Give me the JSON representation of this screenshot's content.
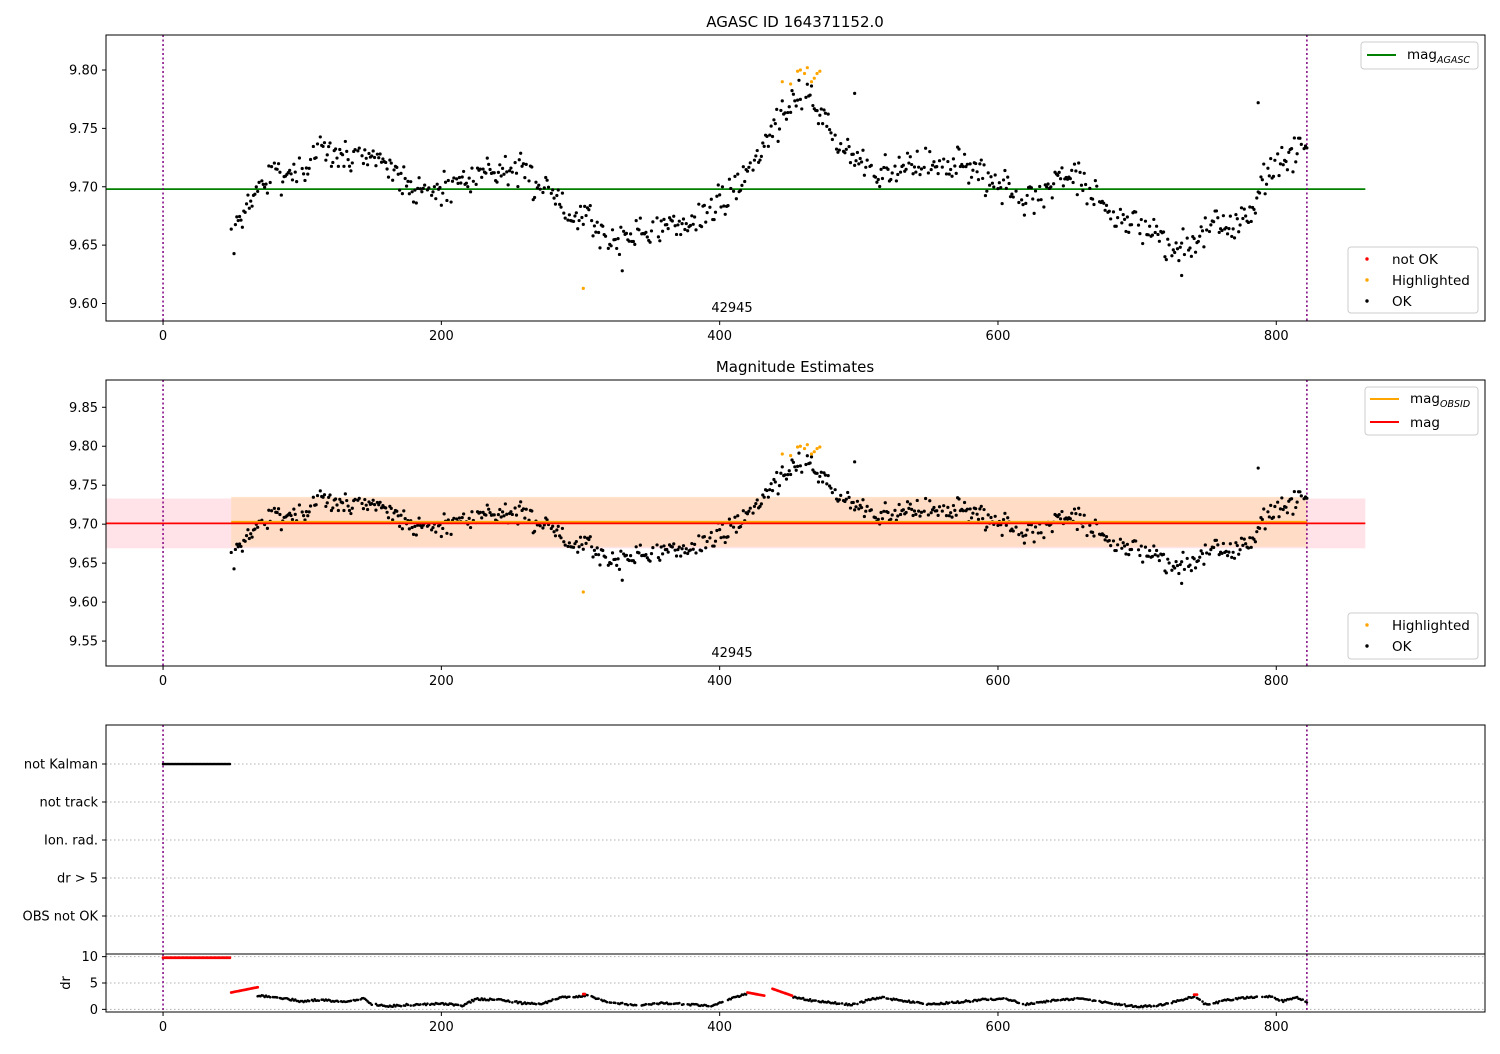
{
  "colors": {
    "ok": "#000000",
    "highlighted": "#ffa500",
    "not_ok": "#ff0000",
    "agasc_line": "#008000",
    "obsid_line": "#ffa500",
    "mag_line": "#ff0000",
    "mag_band": "#ffc0cb",
    "obsid_band": "#ffdab9",
    "obs_boundary": "#800080"
  },
  "chart_data": [
    {
      "type": "scatter",
      "title": "AGASC ID 164371152.0",
      "x_ticks": [
        "0",
        "200",
        "400",
        "600",
        "800"
      ],
      "y_ticks": [
        "9.60",
        "9.65",
        "9.70",
        "9.75",
        "9.80"
      ],
      "xlim": [
        -41,
        950
      ],
      "ylim": [
        9.585,
        9.83
      ],
      "obsid_label": "42945",
      "obs_boundaries": [
        0,
        822
      ],
      "reference_line": {
        "label_main": "mag",
        "label_sub": "AGASC",
        "y": 9.698,
        "x_range": [
          -41,
          864
        ]
      },
      "legend_lines": [
        {
          "label_main": "mag",
          "label_sub": "AGASC"
        }
      ],
      "legend_points": [
        {
          "label": "not OK",
          "color_key": "not_ok"
        },
        {
          "label": "Highlighted",
          "color_key": "highlighted"
        },
        {
          "label": "OK",
          "color_key": "ok"
        }
      ],
      "highlighted_points": [
        {
          "x": 302,
          "y": 9.613
        },
        {
          "x": 445,
          "y": 9.79
        },
        {
          "x": 451,
          "y": 9.788
        },
        {
          "x": 456,
          "y": 9.799
        },
        {
          "x": 458,
          "y": 9.8
        },
        {
          "x": 461,
          "y": 9.797
        },
        {
          "x": 463,
          "y": 9.802
        },
        {
          "x": 466,
          "y": 9.79
        },
        {
          "x": 468,
          "y": 9.793
        },
        {
          "x": 470,
          "y": 9.797
        },
        {
          "x": 472,
          "y": 9.799
        }
      ],
      "ok_series_nodes": [
        [
          49,
          9.65
        ],
        [
          55,
          9.672
        ],
        [
          62,
          9.69
        ],
        [
          72,
          9.702
        ],
        [
          85,
          9.712
        ],
        [
          100,
          9.714
        ],
        [
          115,
          9.73
        ],
        [
          130,
          9.726
        ],
        [
          150,
          9.727
        ],
        [
          162,
          9.722
        ],
        [
          170,
          9.703
        ],
        [
          190,
          9.696
        ],
        [
          205,
          9.7
        ],
        [
          225,
          9.715
        ],
        [
          245,
          9.713
        ],
        [
          262,
          9.71
        ],
        [
          278,
          9.698
        ],
        [
          292,
          9.678
        ],
        [
          305,
          9.676
        ],
        [
          320,
          9.652
        ],
        [
          340,
          9.662
        ],
        [
          360,
          9.663
        ],
        [
          380,
          9.672
        ],
        [
          398,
          9.683
        ],
        [
          412,
          9.7
        ],
        [
          425,
          9.722
        ],
        [
          438,
          9.75
        ],
        [
          450,
          9.772
        ],
        [
          462,
          9.782
        ],
        [
          475,
          9.76
        ],
        [
          485,
          9.732
        ],
        [
          500,
          9.73
        ],
        [
          512,
          9.71
        ],
        [
          530,
          9.717
        ],
        [
          550,
          9.718
        ],
        [
          570,
          9.72
        ],
        [
          590,
          9.71
        ],
        [
          605,
          9.7
        ],
        [
          615,
          9.685
        ],
        [
          630,
          9.69
        ],
        [
          645,
          9.712
        ],
        [
          658,
          9.713
        ],
        [
          670,
          9.69
        ],
        [
          685,
          9.667
        ],
        [
          700,
          9.668
        ],
        [
          712,
          9.665
        ],
        [
          725,
          9.645
        ],
        [
          738,
          9.648
        ],
        [
          752,
          9.67
        ],
        [
          765,
          9.668
        ],
        [
          780,
          9.67
        ],
        [
          790,
          9.704
        ],
        [
          800,
          9.718
        ],
        [
          812,
          9.732
        ],
        [
          822,
          9.73
        ]
      ],
      "ok_spread": 0.012,
      "ok_outliers": [
        [
          330,
          9.628
        ],
        [
          497,
          9.78
        ],
        [
          732,
          9.624
        ],
        [
          787,
          9.772
        ]
      ]
    },
    {
      "type": "scatter",
      "title": "Magnitude Estimates",
      "x_ticks": [
        "0",
        "200",
        "400",
        "600",
        "800"
      ],
      "y_ticks": [
        "9.55",
        "9.60",
        "9.65",
        "9.70",
        "9.75",
        "9.80",
        "9.85"
      ],
      "xlim": [
        -41,
        950
      ],
      "ylim": [
        9.518,
        9.885
      ],
      "obsid_label": "42945",
      "obs_boundaries": [
        0,
        822
      ],
      "mag_line": {
        "label": "mag",
        "y": 9.701,
        "x_range": [
          -41,
          864
        ]
      },
      "mag_band": [
        9.669,
        9.733
      ],
      "obsid_line": {
        "label_main": "mag",
        "label_sub": "OBSID",
        "y": 9.703,
        "x_range": [
          49,
          822
        ]
      },
      "obsid_band": [
        9.671,
        9.735
      ],
      "legend_lines": [
        {
          "label_main": "mag",
          "label_sub": "OBSID",
          "color_key": "obsid_line"
        },
        {
          "label_main": "mag",
          "label_sub": "",
          "color_key": "mag_line"
        }
      ],
      "legend_points": [
        {
          "label": "Highlighted",
          "color_key": "highlighted"
        },
        {
          "label": "OK",
          "color_key": "ok"
        }
      ]
    },
    {
      "type": "scatter",
      "categories": [
        "not Kalman",
        "not track",
        "Ion. rad.",
        "dr > 5",
        "OBS not OK"
      ],
      "flags": {
        "not Kalman": [
          [
            0,
            48
          ]
        ]
      },
      "obs_boundaries": [
        0,
        822
      ],
      "x_ticks": [
        "0",
        "200",
        "400",
        "600",
        "800"
      ],
      "xlim": [
        -41,
        950
      ]
    },
    {
      "type": "scatter",
      "ylabel": "dr",
      "y_ticks": [
        "0",
        "5",
        "10"
      ],
      "x_ticks": [
        "0",
        "200",
        "400",
        "600",
        "800"
      ],
      "xlim": [
        -41,
        950
      ],
      "ylim": [
        -0.5,
        10.5
      ],
      "obs_boundaries": [
        0,
        822
      ],
      "dr_red_segments": [
        {
          "from": 0,
          "to": 48,
          "y": 9.8
        },
        {
          "from": 49,
          "to": 68,
          "y_from": 3.2,
          "y_to": 4.2
        },
        {
          "from": 302,
          "to": 303,
          "y": 2.9
        },
        {
          "from": 420,
          "to": 432,
          "y_from": 3.2,
          "y_to": 2.6
        },
        {
          "from": 438,
          "to": 452,
          "y_from": 3.9,
          "y_to": 2.6
        },
        {
          "from": 741,
          "to": 743,
          "y": 2.8
        }
      ],
      "dr_ok_nodes": [
        [
          68,
          2.6
        ],
        [
          85,
          2.2
        ],
        [
          100,
          1.5
        ],
        [
          110,
          1.8
        ],
        [
          130,
          1.5
        ],
        [
          145,
          2.0
        ],
        [
          150,
          1.0
        ],
        [
          160,
          0.6
        ],
        [
          180,
          0.9
        ],
        [
          200,
          1.1
        ],
        [
          215,
          0.7
        ],
        [
          225,
          2.0
        ],
        [
          245,
          1.7
        ],
        [
          258,
          1.2
        ],
        [
          272,
          1.0
        ],
        [
          285,
          2.3
        ],
        [
          305,
          2.6
        ],
        [
          320,
          1.4
        ],
        [
          340,
          0.7
        ],
        [
          360,
          1.2
        ],
        [
          380,
          0.9
        ],
        [
          395,
          0.6
        ],
        [
          410,
          2.3
        ],
        [
          420,
          2.9
        ],
        [
          452,
          2.4
        ],
        [
          470,
          1.5
        ],
        [
          495,
          0.9
        ],
        [
          515,
          2.3
        ],
        [
          530,
          1.7
        ],
        [
          550,
          1.0
        ],
        [
          570,
          1.3
        ],
        [
          590,
          1.9
        ],
        [
          605,
          2.0
        ],
        [
          620,
          1.0
        ],
        [
          640,
          1.7
        ],
        [
          660,
          2.0
        ],
        [
          680,
          1.2
        ],
        [
          700,
          0.5
        ],
        [
          720,
          0.9
        ],
        [
          741,
          2.5
        ],
        [
          750,
          0.8
        ],
        [
          765,
          1.8
        ],
        [
          780,
          2.3
        ],
        [
          795,
          2.4
        ],
        [
          805,
          1.6
        ],
        [
          815,
          2.2
        ],
        [
          822,
          1.4
        ]
      ]
    }
  ]
}
